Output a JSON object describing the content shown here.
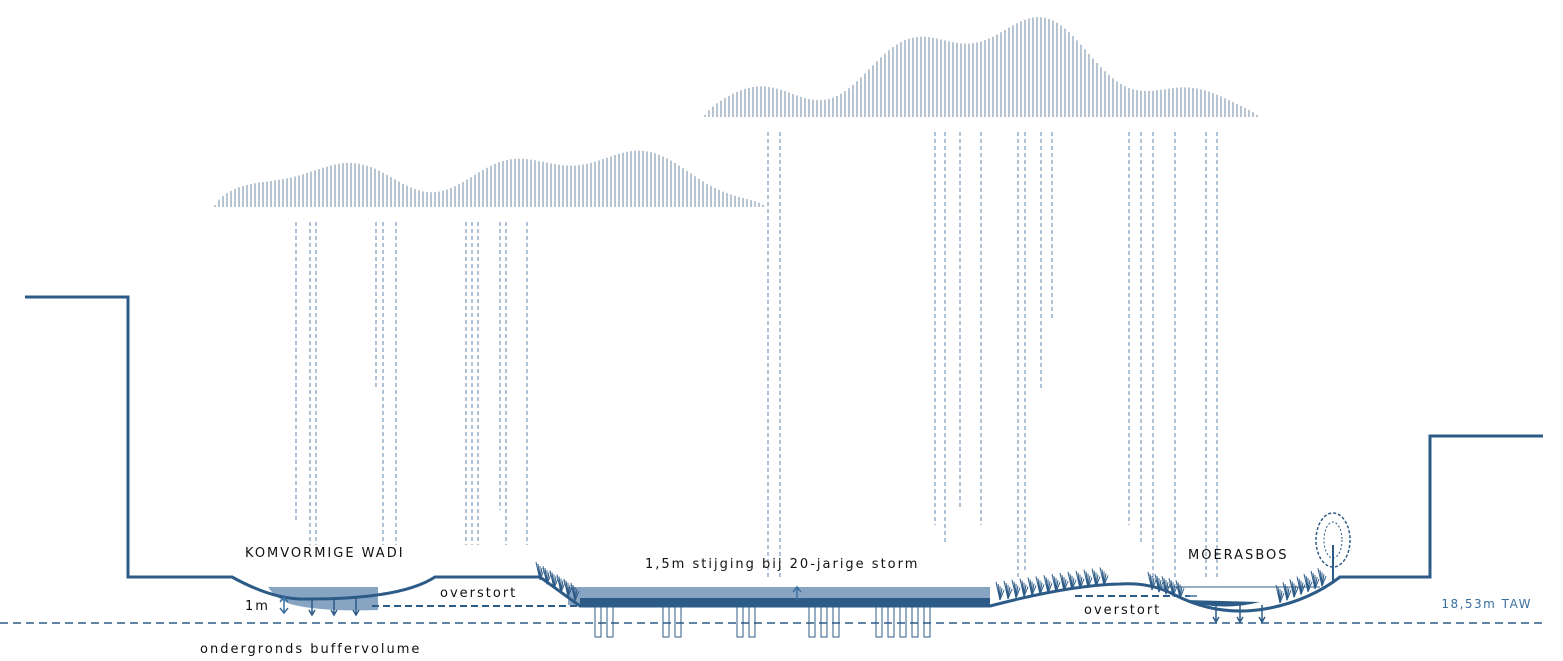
{
  "labels": {
    "wadi": "KOMVORMIGE WADI",
    "depth": "1m",
    "overflow_left": "overstort",
    "storm_rise": "1,5m stijging bij 20-jarige storm",
    "moerasbos": "MOERASBOS",
    "overflow_right": "overstort",
    "level": "18,53m TAW",
    "buffer": "ondergronds buffervolume"
  }
}
